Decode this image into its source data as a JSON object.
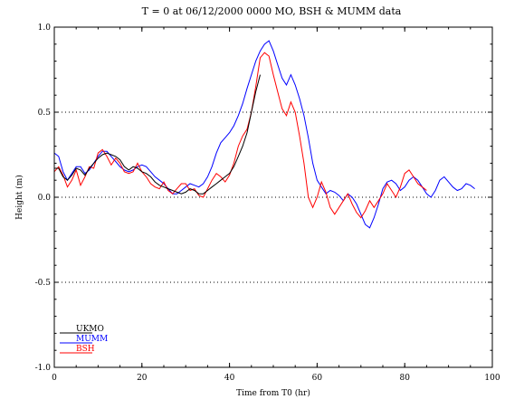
{
  "chart_data": {
    "type": "line",
    "title": "T = 0  at  06/12/2000  0000  MO, BSH & MUMM data",
    "xlabel": "Time from T0 (hr)",
    "ylabel": "Height (m)",
    "xlim": [
      0,
      100
    ],
    "ylim": [
      -1.0,
      1.0
    ],
    "xticks": [
      "0",
      "20",
      "40",
      "60",
      "80",
      "100"
    ],
    "yticks": [
      "1.0",
      "0.5",
      "0.0",
      "-0.5",
      "-1.0"
    ],
    "grid": "dotted horizontal at 0.5, 0.0, -0.5",
    "legend_position": "bottom-left",
    "series": [
      {
        "name": "UKMO",
        "color": "#000000",
        "x": [
          0,
          1,
          2,
          3,
          4,
          5,
          6,
          7,
          8,
          9,
          10,
          11,
          12,
          13,
          14,
          15,
          16,
          17,
          18,
          19,
          20,
          21,
          22,
          23,
          24,
          25,
          26,
          27,
          28,
          29,
          30,
          31,
          32,
          33,
          34,
          35,
          36,
          37,
          38,
          39,
          40,
          41,
          42,
          43,
          44,
          45,
          46,
          47
        ],
        "y": [
          0.17,
          0.17,
          0.12,
          0.1,
          0.13,
          0.17,
          0.16,
          0.13,
          0.17,
          0.2,
          0.23,
          0.25,
          0.26,
          0.25,
          0.24,
          0.22,
          0.18,
          0.16,
          0.18,
          0.17,
          0.15,
          0.14,
          0.12,
          0.09,
          0.07,
          0.06,
          0.05,
          0.04,
          0.03,
          0.02,
          0.03,
          0.05,
          0.04,
          0.02,
          0.02,
          0.04,
          0.06,
          0.08,
          0.1,
          0.12,
          0.14,
          0.18,
          0.24,
          0.3,
          0.38,
          0.5,
          0.62,
          0.72
        ]
      },
      {
        "name": "MUMM",
        "color": "#0000ff",
        "x": [
          0,
          1,
          2,
          3,
          4,
          5,
          6,
          7,
          8,
          9,
          10,
          11,
          12,
          13,
          14,
          15,
          16,
          17,
          18,
          19,
          20,
          21,
          22,
          23,
          24,
          25,
          26,
          27,
          28,
          29,
          30,
          31,
          32,
          33,
          34,
          35,
          36,
          37,
          38,
          39,
          40,
          41,
          42,
          43,
          44,
          45,
          46,
          47,
          48,
          49,
          50,
          51,
          52,
          53,
          54,
          55,
          56,
          57,
          58,
          59,
          60,
          61,
          62,
          63,
          64,
          65,
          66,
          67,
          68,
          69,
          70,
          71,
          72,
          73,
          74,
          75,
          76,
          77,
          78,
          79,
          80,
          81,
          82,
          83,
          84,
          85,
          86,
          87,
          88,
          89,
          90,
          91,
          92,
          93,
          94,
          95,
          96
        ],
        "y": [
          0.26,
          0.24,
          0.15,
          0.1,
          0.14,
          0.18,
          0.18,
          0.14,
          0.16,
          0.2,
          0.24,
          0.27,
          0.27,
          0.24,
          0.21,
          0.18,
          0.16,
          0.15,
          0.16,
          0.18,
          0.19,
          0.18,
          0.15,
          0.12,
          0.1,
          0.08,
          0.05,
          0.02,
          0.02,
          0.04,
          0.06,
          0.08,
          0.07,
          0.06,
          0.08,
          0.12,
          0.18,
          0.26,
          0.32,
          0.35,
          0.38,
          0.42,
          0.48,
          0.55,
          0.64,
          0.72,
          0.8,
          0.86,
          0.9,
          0.92,
          0.86,
          0.78,
          0.7,
          0.66,
          0.72,
          0.66,
          0.58,
          0.48,
          0.35,
          0.2,
          0.1,
          0.06,
          0.02,
          0.04,
          0.03,
          0.01,
          -0.02,
          0.02,
          0.0,
          -0.04,
          -0.1,
          -0.16,
          -0.18,
          -0.12,
          -0.04,
          0.05,
          0.09,
          0.1,
          0.08,
          0.04,
          0.06,
          0.1,
          0.12,
          0.1,
          0.06,
          0.02,
          0.0,
          0.04,
          0.1,
          0.12,
          0.09,
          0.06,
          0.04,
          0.05,
          0.08,
          0.07,
          0.05
        ]
      },
      {
        "name": "BSH",
        "color": "#ff0000",
        "x": [
          0,
          1,
          2,
          3,
          4,
          5,
          6,
          7,
          8,
          9,
          10,
          11,
          12,
          13,
          14,
          15,
          16,
          17,
          18,
          19,
          20,
          21,
          22,
          23,
          24,
          25,
          26,
          27,
          28,
          29,
          30,
          31,
          32,
          33,
          34,
          35,
          36,
          37,
          38,
          39,
          40,
          41,
          42,
          43,
          44,
          45,
          46,
          47,
          48,
          49,
          50,
          51,
          52,
          53,
          54,
          55,
          56,
          57,
          58,
          59,
          60,
          61,
          62,
          63,
          64,
          65,
          66,
          67,
          68,
          69,
          70,
          71,
          72,
          73,
          74,
          75,
          76,
          77,
          78,
          79,
          80,
          81,
          82,
          83,
          84,
          85
        ],
        "y": [
          0.15,
          0.18,
          0.13,
          0.06,
          0.1,
          0.16,
          0.07,
          0.12,
          0.18,
          0.17,
          0.26,
          0.28,
          0.24,
          0.19,
          0.23,
          0.2,
          0.15,
          0.14,
          0.15,
          0.2,
          0.15,
          0.12,
          0.08,
          0.06,
          0.05,
          0.09,
          0.04,
          0.02,
          0.05,
          0.08,
          0.08,
          0.04,
          0.05,
          0.01,
          0.0,
          0.05,
          0.1,
          0.14,
          0.12,
          0.09,
          0.13,
          0.2,
          0.3,
          0.36,
          0.4,
          0.5,
          0.65,
          0.82,
          0.85,
          0.83,
          0.72,
          0.62,
          0.52,
          0.48,
          0.56,
          0.5,
          0.36,
          0.2,
          0.0,
          -0.06,
          0.0,
          0.09,
          0.03,
          -0.06,
          -0.1,
          -0.06,
          -0.02,
          0.02,
          -0.04,
          -0.09,
          -0.12,
          -0.08,
          -0.02,
          -0.06,
          -0.02,
          0.02,
          0.08,
          0.04,
          0.0,
          0.06,
          0.14,
          0.16,
          0.12,
          0.08,
          0.06,
          0.04
        ]
      }
    ]
  }
}
